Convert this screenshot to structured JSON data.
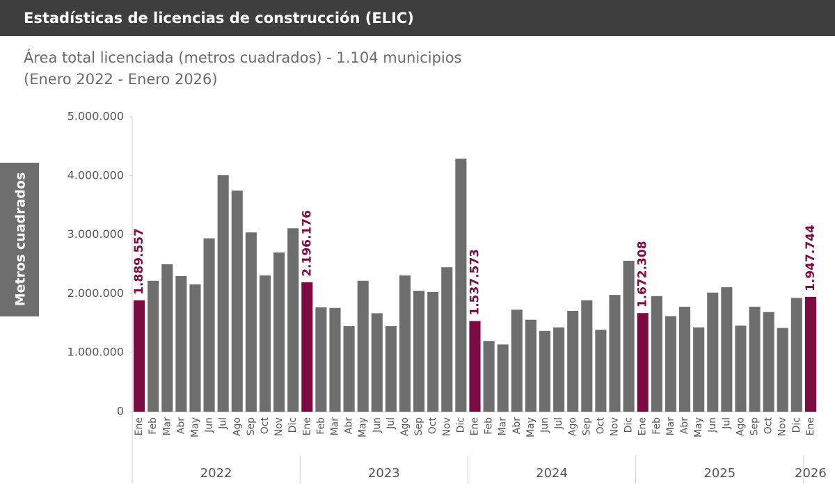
{
  "header": {
    "title": "Estadísticas de licencias de construcción (ELIC)"
  },
  "chart_data": {
    "type": "bar",
    "title": "Área total licenciada (metros cuadrados) - 1.104 municipios",
    "subtitle": "(Enero 2022 - Enero 2026)",
    "y_label": "Metros cuadrados",
    "categories": [
      "Ene",
      "Feb",
      "Mar",
      "Abr",
      "May",
      "Jun",
      "Jul",
      "Ago",
      "Sep",
      "Oct",
      "Nov",
      "Dic",
      "Ene",
      "Feb",
      "Mar",
      "Abr",
      "May",
      "Jun",
      "Jul",
      "Ago",
      "Sep",
      "Oct",
      "Nov",
      "Dic",
      "Ene",
      "Feb",
      "Mar",
      "Abr",
      "May",
      "Jun",
      "Jul",
      "Ago",
      "Sep",
      "Oct",
      "Nov",
      "Dic",
      "Ene",
      "Feb",
      "Mar",
      "Abr",
      "May",
      "Jun",
      "Jul",
      "Ago",
      "Sep",
      "Oct",
      "Nov",
      "Dic",
      "Ene"
    ],
    "years": [
      "2022",
      "2023",
      "2024",
      "2025",
      "2026"
    ],
    "values": [
      1889557,
      2220000,
      2500000,
      2300000,
      2160000,
      2940000,
      4010000,
      3750000,
      3040000,
      2310000,
      2700000,
      3110000,
      2196176,
      1770000,
      1760000,
      1450000,
      2220000,
      1670000,
      1450000,
      2310000,
      2050000,
      2030000,
      2450000,
      4290000,
      1537573,
      1200000,
      1140000,
      1730000,
      1560000,
      1370000,
      1430000,
      1710000,
      1890000,
      1390000,
      1980000,
      2560000,
      1672308,
      1960000,
      1620000,
      1780000,
      1430000,
      2020000,
      2110000,
      1460000,
      1780000,
      1690000,
      1420000,
      1930000,
      1947744
    ],
    "value_labels": [
      "1.889.557",
      null,
      null,
      null,
      null,
      null,
      null,
      null,
      null,
      null,
      null,
      null,
      "2.196.176",
      null,
      null,
      null,
      null,
      null,
      null,
      null,
      null,
      null,
      null,
      null,
      "1.537.573",
      null,
      null,
      null,
      null,
      null,
      null,
      null,
      null,
      null,
      null,
      null,
      "1.672.308",
      null,
      null,
      null,
      null,
      null,
      null,
      null,
      null,
      null,
      null,
      null,
      "1.947.744"
    ],
    "color": "#6e6e6e",
    "highlight_color": "#7c0b42",
    "ylim": [
      0,
      5000000
    ],
    "yticks": [
      0,
      {
        "value": 1000000,
        "label": "1.000.000"
      },
      {
        "value": 2000000,
        "label": "2.000.000"
      },
      {
        "value": 3000000,
        "label": "3.000.000"
      },
      {
        "value": 4000000,
        "label": "4.000.000"
      },
      {
        "value": 5000000,
        "label": "5.000.000"
      }
    ],
    "grid": false
  }
}
